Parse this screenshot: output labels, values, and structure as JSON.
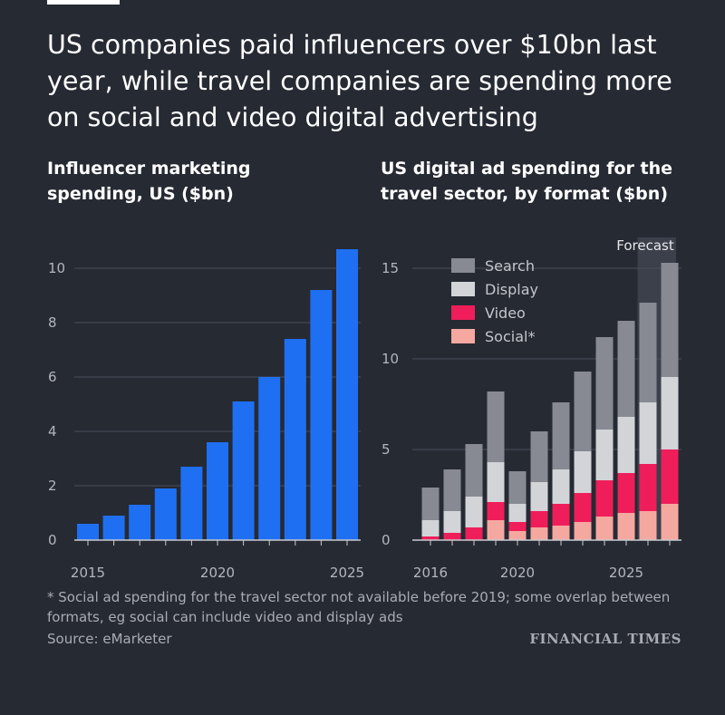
{
  "headline": "US companies paid influencers over $10bn last year, while travel companies are spending more on social and video digital advertising",
  "footnote": "* Social ad spending for the travel sector not available before 2019; some overlap between formats, eg social can include video and display ads",
  "source": "Source: eMarketer",
  "brand": "FINANCIAL TIMES",
  "colors": {
    "background": "#262a33",
    "influencer_bar": "#1f6ff2",
    "search": "#878a93",
    "display": "#d3d4d8",
    "video": "#ef1e5a",
    "social": "#f4a8a0",
    "forecast_shade": "#3b404b"
  },
  "chart_data": [
    {
      "type": "bar",
      "title": "Influencer marketing spending, US ($bn)",
      "x": [
        2015,
        2016,
        2017,
        2018,
        2019,
        2020,
        2021,
        2022,
        2023,
        2024,
        2025
      ],
      "values": [
        0.6,
        0.9,
        1.3,
        1.9,
        2.7,
        3.6,
        5.1,
        6.0,
        7.4,
        9.2,
        10.7
      ],
      "ylim": [
        0,
        11
      ],
      "yticks": [
        0,
        2,
        4,
        6,
        8,
        10
      ],
      "xticks": [
        2015,
        2020,
        2025
      ],
      "grid": true
    },
    {
      "type": "bar",
      "stacked": true,
      "title": "US digital ad spending for the travel sector, by format ($bn)",
      "x": [
        2016,
        2017,
        2018,
        2019,
        2020,
        2021,
        2022,
        2023,
        2024,
        2025,
        2026,
        2027
      ],
      "series": [
        {
          "name": "Social*",
          "values": [
            0,
            0,
            0,
            1.1,
            0.5,
            0.7,
            0.8,
            1.0,
            1.3,
            1.5,
            1.6,
            2.0
          ]
        },
        {
          "name": "Video",
          "values": [
            0.2,
            0.4,
            0.7,
            1.0,
            0.5,
            0.9,
            1.2,
            1.6,
            2.0,
            2.2,
            2.6,
            3.0
          ]
        },
        {
          "name": "Display",
          "values": [
            0.9,
            1.2,
            1.7,
            2.2,
            1.0,
            1.6,
            1.9,
            2.3,
            2.8,
            3.1,
            3.4,
            4.0
          ]
        },
        {
          "name": "Search",
          "values": [
            1.8,
            2.3,
            2.9,
            3.9,
            1.8,
            2.8,
            3.7,
            4.4,
            5.1,
            5.3,
            5.5,
            6.3
          ]
        }
      ],
      "legend_order": [
        "Search",
        "Display",
        "Video",
        "Social*"
      ],
      "legend_position": "top-left",
      "ylim": [
        0,
        16
      ],
      "yticks": [
        0,
        5,
        10,
        15
      ],
      "xticks": [
        2016,
        2020,
        2025
      ],
      "forecast_label": "Forecast",
      "forecast_from": 2026,
      "grid": true
    }
  ]
}
